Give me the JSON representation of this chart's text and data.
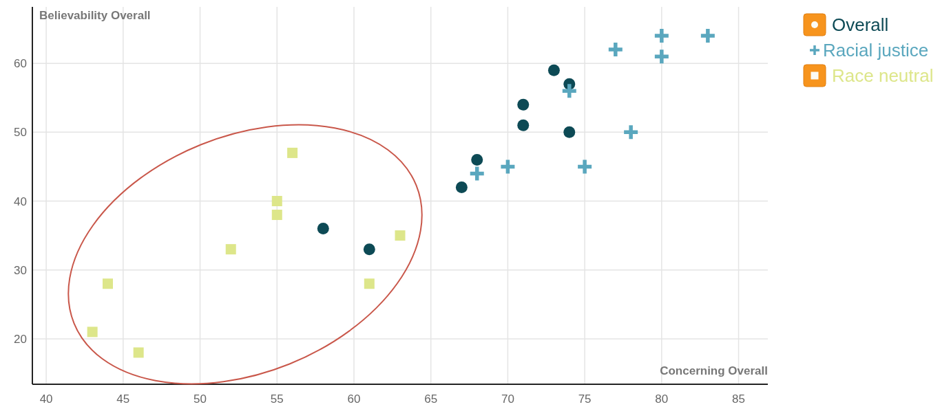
{
  "chart_data": {
    "type": "scatter",
    "xlabel": "Concerning Overall",
    "ylabel": "Believability Overall",
    "xlim": [
      39.1,
      86.9
    ],
    "xticks": [
      40,
      45,
      50,
      55,
      60,
      65,
      70,
      75,
      80,
      85
    ],
    "ylim": [
      13.4,
      68.2
    ],
    "yticks": [
      20,
      30,
      40,
      50,
      60
    ],
    "grid": true,
    "legend": "top right",
    "series": [
      {
        "name": "Overall",
        "color": "#0d4a55",
        "marker": "circle",
        "x": [
          58,
          61,
          67,
          68,
          71,
          71,
          73,
          74,
          74
        ],
        "values": [
          36,
          33,
          42,
          46,
          51,
          54,
          59,
          57,
          50
        ]
      },
      {
        "name": "Racial justice",
        "color": "#5aa7be",
        "marker": "cross",
        "x": [
          68,
          70,
          74,
          75,
          77,
          78,
          80,
          80,
          83
        ],
        "values": [
          44,
          45,
          56,
          45,
          62,
          50,
          64,
          61,
          64
        ]
      },
      {
        "name": "Race neutral",
        "color": "#dde68a",
        "marker": "square",
        "x": [
          43,
          44,
          46,
          52,
          55,
          55,
          56,
          61,
          63
        ],
        "values": [
          21,
          28,
          18,
          33,
          40,
          38,
          47,
          28,
          35
        ]
      }
    ]
  }
}
